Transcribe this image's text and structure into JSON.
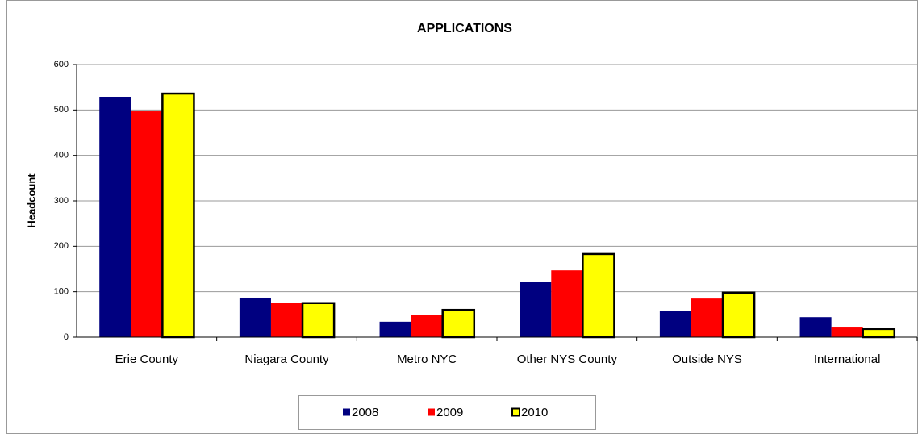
{
  "chart_data": {
    "type": "bar",
    "title": "APPLICATIONS",
    "y_label": "Headcount",
    "categories": [
      "Erie County",
      "Niagara County",
      "Metro NYC",
      "Other NYS County",
      "Outside NYS",
      "International"
    ],
    "series": [
      {
        "name": "2008",
        "color": "#000080",
        "values": [
          529,
          87,
          34,
          121,
          57,
          44
        ]
      },
      {
        "name": "2009",
        "color": "#ff0000",
        "values": [
          497,
          75,
          48,
          147,
          85,
          23
        ]
      },
      {
        "name": "2010",
        "color": "#ffff00",
        "edgecolor": "#000000",
        "values": [
          536,
          75,
          60,
          183,
          98,
          18
        ]
      }
    ],
    "ylim": [
      0,
      600
    ],
    "yticks": [
      0,
      100,
      200,
      300,
      400,
      500,
      600
    ],
    "grid": true,
    "legend": "bottom"
  }
}
